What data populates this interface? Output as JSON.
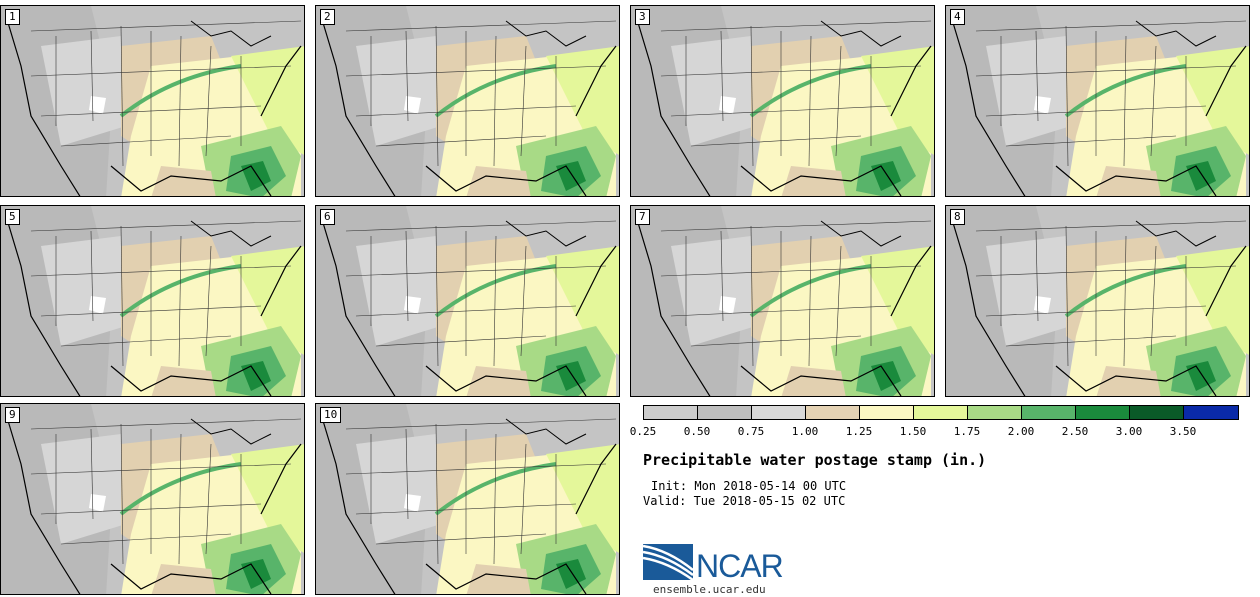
{
  "panels": [
    "1",
    "2",
    "3",
    "4",
    "5",
    "6",
    "7",
    "8",
    "9",
    "10"
  ],
  "colorbar": {
    "colors": [
      "#cccccc",
      "#bebebe",
      "#d9d9d9",
      "#e4d2b4",
      "#fbf7c3",
      "#e4f79a",
      "#a8da86",
      "#58b46a",
      "#1a8a3c",
      "#0a5a28",
      "#0a2aa8"
    ],
    "ticks": [
      "0.25",
      "0.50",
      "0.75",
      "1.00",
      "1.25",
      "1.50",
      "1.75",
      "2.00",
      "2.50",
      "3.00",
      "3.50"
    ]
  },
  "title": "Precipitable water postage stamp (in.)",
  "init": "Init: Mon 2018-05-14 00 UTC",
  "valid": "Valid: Tue 2018-05-15 02 UTC",
  "logo": {
    "text": "NCAR",
    "color": "#1a5a99"
  },
  "url": "ensemble.ucar.edu"
}
